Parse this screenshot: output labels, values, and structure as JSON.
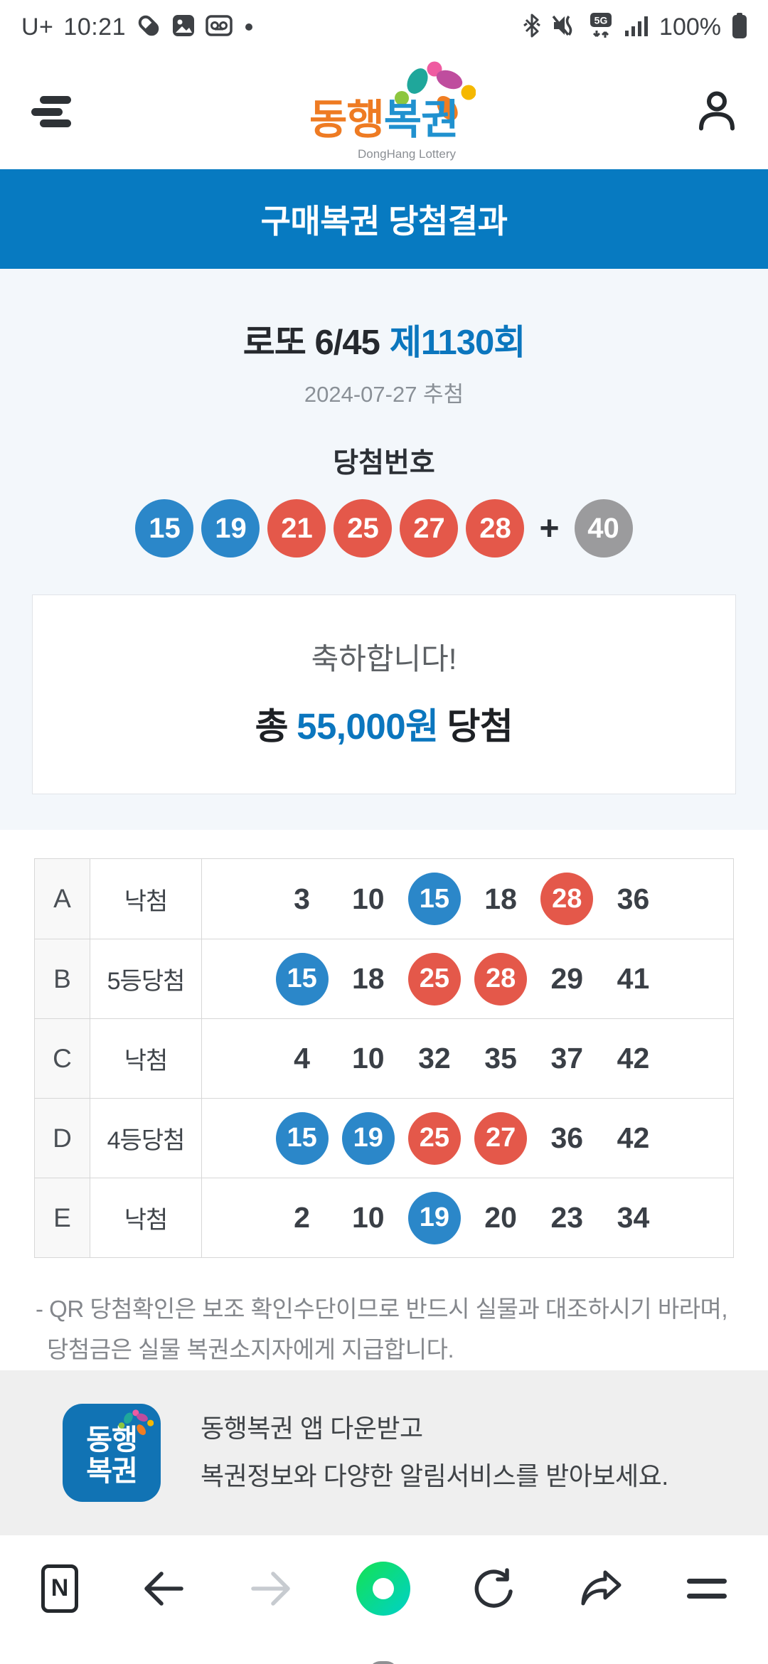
{
  "status_bar": {
    "carrier": "U+",
    "time": "10:21",
    "battery_percent": "100%",
    "icons_left": [
      "pill-icon",
      "gallery-icon",
      "voicemail-icon",
      "notification-dot"
    ],
    "icons_right": [
      "bluetooth-icon",
      "mute-vibrate-icon",
      "5g-network-icon",
      "signal-icon",
      "battery-icon"
    ],
    "network_label": "5G"
  },
  "header": {
    "logo_main_1": "동행",
    "logo_main_2": "복권",
    "logo_sub": "DongHang Lottery"
  },
  "banner": {
    "title": "구매복권 당첨결과"
  },
  "result": {
    "game_title": "로또 6/45",
    "round": "제1130회",
    "draw_date": "2024-07-27 추첨",
    "numbers_label": "당첨번호",
    "winning_numbers": [
      {
        "v": 15,
        "c": "blue"
      },
      {
        "v": 19,
        "c": "blue"
      },
      {
        "v": 21,
        "c": "red"
      },
      {
        "v": 25,
        "c": "red"
      },
      {
        "v": 27,
        "c": "red"
      },
      {
        "v": 28,
        "c": "red"
      }
    ],
    "plus": "+",
    "bonus": {
      "v": 40,
      "c": "gray"
    },
    "congrats": "축하합니다!",
    "total_prefix": "총",
    "total_amount": "55,000원",
    "total_suffix": "당첨"
  },
  "table": {
    "rows": [
      {
        "label": "A",
        "status": "낙첨",
        "numbers": [
          {
            "v": 3,
            "c": "plain"
          },
          {
            "v": 10,
            "c": "plain"
          },
          {
            "v": 15,
            "c": "blue"
          },
          {
            "v": 18,
            "c": "plain"
          },
          {
            "v": 28,
            "c": "red"
          },
          {
            "v": 36,
            "c": "plain"
          }
        ]
      },
      {
        "label": "B",
        "status": "5등당첨",
        "numbers": [
          {
            "v": 15,
            "c": "blue"
          },
          {
            "v": 18,
            "c": "plain"
          },
          {
            "v": 25,
            "c": "red"
          },
          {
            "v": 28,
            "c": "red"
          },
          {
            "v": 29,
            "c": "plain"
          },
          {
            "v": 41,
            "c": "plain"
          }
        ]
      },
      {
        "label": "C",
        "status": "낙첨",
        "numbers": [
          {
            "v": 4,
            "c": "plain"
          },
          {
            "v": 10,
            "c": "plain"
          },
          {
            "v": 32,
            "c": "plain"
          },
          {
            "v": 35,
            "c": "plain"
          },
          {
            "v": 37,
            "c": "plain"
          },
          {
            "v": 42,
            "c": "plain"
          }
        ]
      },
      {
        "label": "D",
        "status": "4등당첨",
        "numbers": [
          {
            "v": 15,
            "c": "blue"
          },
          {
            "v": 19,
            "c": "blue"
          },
          {
            "v": 25,
            "c": "red"
          },
          {
            "v": 27,
            "c": "red"
          },
          {
            "v": 36,
            "c": "plain"
          },
          {
            "v": 42,
            "c": "plain"
          }
        ]
      },
      {
        "label": "E",
        "status": "낙첨",
        "numbers": [
          {
            "v": 2,
            "c": "plain"
          },
          {
            "v": 10,
            "c": "plain"
          },
          {
            "v": 19,
            "c": "blue"
          },
          {
            "v": 20,
            "c": "plain"
          },
          {
            "v": 23,
            "c": "plain"
          },
          {
            "v": 34,
            "c": "plain"
          }
        ]
      }
    ]
  },
  "note": {
    "text": "- QR 당첨확인은 보조 확인수단이므로 반드시 실물과 대조하시기 바라며, 당첨금은 실물 복권소지자에게 지급합니다."
  },
  "promo": {
    "icon_text_1": "동행",
    "icon_text_2": "복권",
    "line1": "동행복권 앱 다운받고",
    "line2": "복권정보와 다양한 알림서비스를 받아보세요.",
    "naver_badge_letter": "N"
  },
  "toolbar_icons": [
    "naver-app-icon",
    "back-icon",
    "forward-icon",
    "home-donut-icon",
    "refresh-icon",
    "share-icon",
    "menu-icon"
  ],
  "system_nav_icons": [
    "recents-icon",
    "home-icon",
    "back-chevron-icon"
  ],
  "colors": {
    "banner_blue": "#077ac1",
    "accent_blue": "#0b76be",
    "ball_blue": "#2b87c9",
    "ball_red": "#e4584a",
    "ball_gray": "#9b9b9d",
    "promo_bg": "#efefef",
    "section_bg": "#f3f7fb",
    "naver_green": "#12e05e"
  }
}
